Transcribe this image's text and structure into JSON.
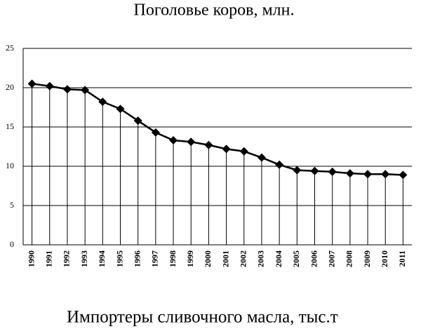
{
  "chart_data": {
    "type": "line",
    "title": "Поголовье коров, млн.",
    "subtitle": "Импортеры сливочного масла, тыс.т",
    "categories": [
      "1990",
      "1991",
      "1992",
      "1993",
      "1994",
      "1995",
      "1996",
      "1997",
      "1998",
      "1999",
      "2000",
      "2001",
      "2002",
      "2003",
      "2004",
      "2005",
      "2006",
      "2007",
      "2008",
      "2009",
      "2010",
      "2011"
    ],
    "values": [
      20.5,
      20.2,
      19.8,
      19.7,
      18.2,
      17.3,
      15.8,
      14.3,
      13.3,
      13.1,
      12.7,
      12.2,
      11.9,
      11.1,
      10.2,
      9.5,
      9.4,
      9.3,
      9.1,
      9.0,
      9.0,
      8.9
    ],
    "color": "#000000",
    "ylim": [
      0,
      25
    ],
    "yticks": [
      0,
      5,
      10,
      15,
      20,
      25
    ],
    "grid": true
  }
}
